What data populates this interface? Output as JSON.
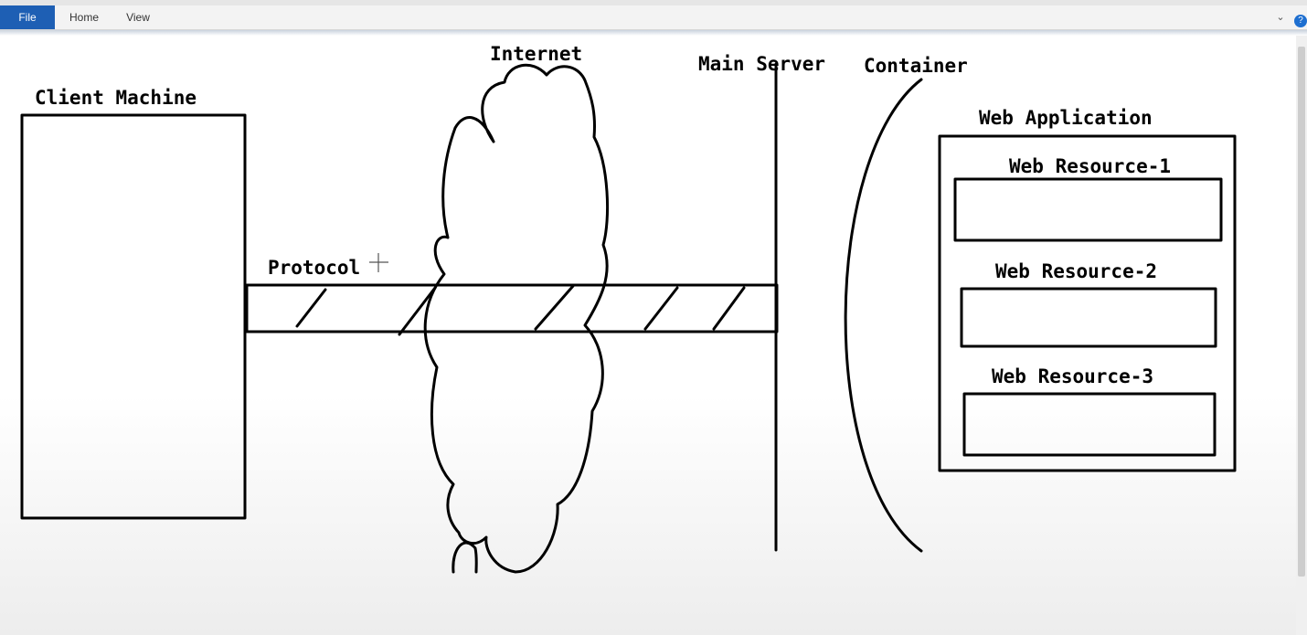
{
  "menu": {
    "file": "File",
    "home": "Home",
    "view": "View"
  },
  "icons": {
    "ribbon_toggle": "chevron-down-icon",
    "help": "help-icon",
    "cursor": "crosshair-cursor-icon"
  },
  "colors": {
    "file_tab": "#1e5fb4",
    "ink": "#000000"
  },
  "diagram": {
    "client_machine": "Client Machine",
    "protocol": "Protocol",
    "internet": "Internet",
    "main_server": "Main Server",
    "container": "Container",
    "web_application": "Web Application",
    "web_resources": [
      "Web Resource-1",
      "Web Resource-2",
      "Web Resource-3"
    ]
  }
}
